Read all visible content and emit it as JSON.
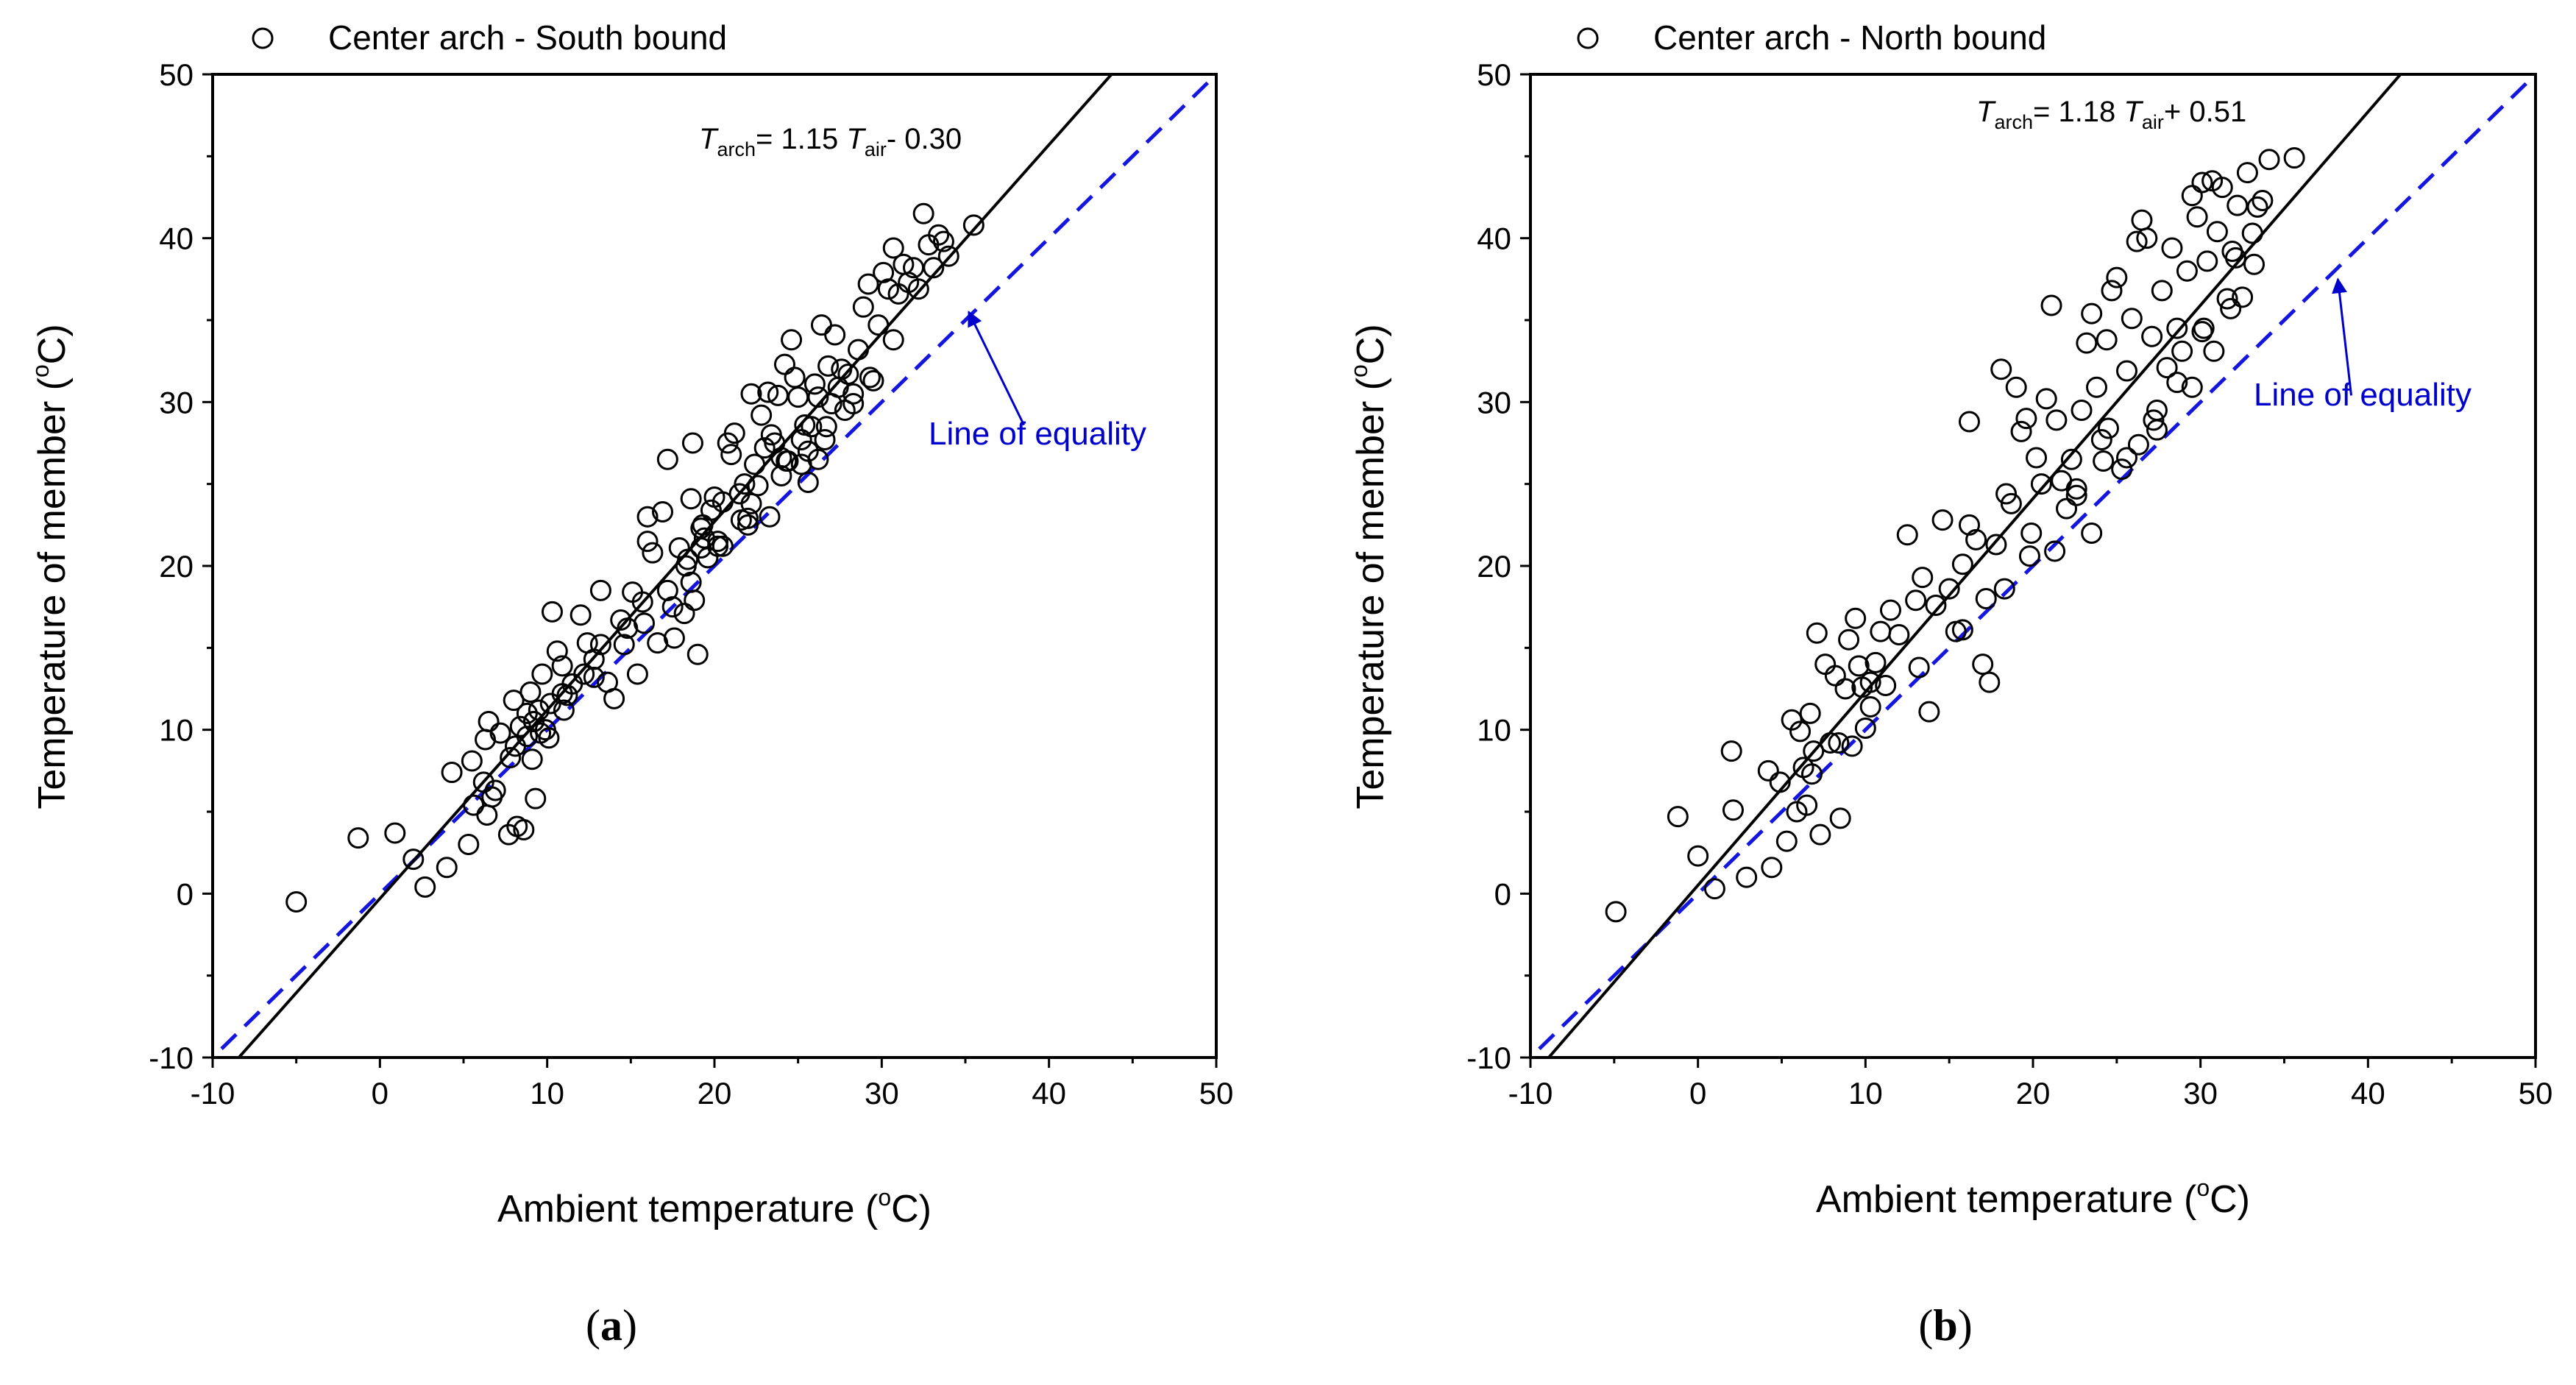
{
  "chart_data": [
    {
      "type": "scatter",
      "panel": "(a)",
      "panel_letter": "a",
      "legend": "Center arch - South bound",
      "xlabel": "Ambient temperature (",
      "ylabel": "Temperature of member (",
      "unit_sup": "o",
      "unit_tail": "C)",
      "xlim": [
        -10,
        50
      ],
      "ylim": [
        -10,
        50
      ],
      "xticks": [
        "-10",
        "0",
        "10",
        "20",
        "30",
        "40",
        "50"
      ],
      "yticks": [
        "-10",
        "0",
        "10",
        "20",
        "30",
        "40",
        "50"
      ],
      "grid": false,
      "fit": {
        "slope": 1.15,
        "intercept": -0.3,
        "color": "#000000"
      },
      "equality_line": {
        "slope": 1,
        "intercept": 0,
        "color": "#1515e0",
        "label": "Line of equality"
      },
      "equation": {
        "T1": "T",
        "sub1": "arch",
        "mid": "= 1.15 ",
        "T2": "T",
        "sub2": "air",
        "tail": "- 0.30"
      },
      "x": [
        -5,
        -1.3,
        0.9,
        2,
        2.7,
        4,
        4.3,
        5.3,
        5.5,
        6.3,
        6.4,
        6.5,
        6.7,
        6.9,
        7.2,
        7.7,
        8,
        8.2,
        8.4,
        8.6,
        8.8,
        9,
        9.1,
        9.2,
        9.3,
        9.5,
        9.7,
        9.9,
        10.1,
        10.3,
        10.6,
        10.9,
        11.2,
        11.5,
        12,
        12.4,
        12.8,
        13.2,
        13.6,
        14,
        14.4,
        14.8,
        15.1,
        15.4,
        15.7,
        16,
        16.3,
        16.6,
        16.9,
        17.2,
        17.6,
        17.9,
        18.2,
        18.4,
        18.6,
        18.8,
        19,
        19.2,
        19.4,
        19.6,
        19.8,
        20,
        20.2,
        20.5,
        20.8,
        21,
        21.2,
        21.5,
        21.8,
        22,
        22.2,
        22.4,
        22.6,
        22.8,
        23,
        23.2,
        23.4,
        23.6,
        23.8,
        24,
        24.2,
        24.4,
        24.6,
        24.8,
        25,
        25.2,
        25.4,
        25.6,
        25.8,
        26,
        26.2,
        26.4,
        26.6,
        26.8,
        27,
        27.2,
        27.4,
        27.6,
        27.8,
        28,
        28.3,
        28.6,
        28.9,
        29.2,
        29.5,
        29.8,
        30.1,
        30.4,
        30.7,
        31,
        31.3,
        31.6,
        31.9,
        32.2,
        32.5,
        32.8,
        33.1,
        33.4,
        33.7,
        34,
        35.5,
        17.2,
        18.7,
        19.2,
        23.3,
        16,
        18.3,
        19.3,
        20.5,
        24,
        22,
        25.2,
        26.2,
        8.1,
        8.8,
        9.2,
        13.2,
        6.2,
        10.2,
        10.9,
        12.2,
        17.5,
        14.6,
        21.6,
        24.3,
        26.7,
        29.3,
        30.7,
        28.3,
        25.6,
        22.2,
        20.2,
        18.6,
        15.8,
        12.8,
        11,
        9.6,
        7.8,
        5.6
      ],
      "y": [
        -0.5,
        3.4,
        3.7,
        2.1,
        0.4,
        1.6,
        7.4,
        3,
        8.1,
        9.4,
        4.8,
        10.5,
        5.9,
        6.3,
        9.8,
        3.6,
        11.8,
        4.1,
        10.2,
        3.9,
        9.6,
        12.3,
        8.2,
        10.5,
        5.8,
        11.2,
        13.4,
        10,
        9.5,
        17.2,
        14.8,
        13.9,
        12.1,
        12.8,
        17,
        15.3,
        14.3,
        18.5,
        12.9,
        11.9,
        16.7,
        16.2,
        18.4,
        13.4,
        17.8,
        23,
        20.8,
        15.3,
        23.3,
        18.5,
        15.6,
        21.1,
        17.1,
        20.4,
        24.1,
        17.9,
        14.6,
        22.3,
        21.7,
        20.5,
        23.4,
        24.2,
        21.2,
        23.9,
        27.5,
        26.8,
        28.1,
        24.4,
        25,
        22.9,
        30.5,
        26.2,
        24.9,
        29.2,
        27.2,
        30.6,
        28,
        27.5,
        30.4,
        26.6,
        32.3,
        26.4,
        33.8,
        31.5,
        30.3,
        27.7,
        28.6,
        25.1,
        28.5,
        31.1,
        30.3,
        34.7,
        27.7,
        32.2,
        29.9,
        34.1,
        30.9,
        32,
        29.5,
        31.7,
        29.9,
        33.2,
        35.8,
        37.2,
        31.3,
        34.7,
        37.9,
        36.9,
        39.4,
        36.6,
        38.4,
        37.3,
        38.2,
        36.9,
        41.5,
        39.6,
        38.2,
        40.2,
        39.8,
        38.9,
        40.8,
        26.5,
        27.5,
        21.1,
        23,
        21.5,
        20,
        22.5,
        21.2,
        25.5,
        22.5,
        26.2,
        26.5,
        9,
        11,
        10.5,
        15.2,
        6.8,
        11.6,
        12.2,
        13.4,
        17.5,
        15.2,
        22.8,
        26.4,
        28.5,
        31.5,
        33.8,
        30.5,
        27,
        23.8,
        21.5,
        19,
        16.5,
        13.2,
        11.2,
        9.8,
        8.3,
        5.4
      ],
      "annotation_arrow": {
        "from": [
          38.5,
          28.6
        ],
        "to": [
          35.2,
          35.5
        ]
      }
    },
    {
      "type": "scatter",
      "panel": "(b)",
      "panel_letter": "b",
      "legend": "Center arch - North bound",
      "xlabel": "Ambient temperature (",
      "ylabel": "Temperature of  member (",
      "unit_sup": "o",
      "unit_tail": "C)",
      "xlim": [
        -10,
        50
      ],
      "ylim": [
        -10,
        50
      ],
      "xticks": [
        "-10",
        "0",
        "10",
        "20",
        "30",
        "40",
        "50"
      ],
      "yticks": [
        "-10",
        "0",
        "10",
        "20",
        "30",
        "40",
        "50"
      ],
      "grid": false,
      "fit": {
        "slope": 1.18,
        "intercept": 0.51,
        "color": "#000000"
      },
      "equality_line": {
        "slope": 1,
        "intercept": 0,
        "color": "#1515e0",
        "label": "Line of equality"
      },
      "equation": {
        "T1": "T",
        "sub1": "arch",
        "mid": "= 1.18 ",
        "T2": "T",
        "sub2": "air",
        "tail": "+ 0.51"
      },
      "x": [
        -4.9,
        -1.2,
        0,
        1,
        2,
        2.1,
        2.9,
        4.2,
        4.4,
        4.9,
        5.3,
        5.6,
        5.9,
        6.1,
        6.3,
        6.5,
        6.7,
        6.9,
        7.1,
        7.3,
        7.6,
        7.9,
        8.2,
        8.5,
        8.8,
        9,
        9.2,
        9.4,
        9.6,
        9.8,
        10,
        10.3,
        10.6,
        10.9,
        11.2,
        11.5,
        12,
        12.5,
        13,
        13.4,
        13.8,
        14.2,
        14.6,
        15,
        15.4,
        15.8,
        16.2,
        16.6,
        17,
        17.4,
        17.8,
        18.1,
        18.4,
        18.7,
        19,
        19.3,
        19.6,
        19.9,
        20.2,
        20.5,
        20.8,
        21.1,
        21.4,
        21.7,
        22,
        22.3,
        22.6,
        22.9,
        23.2,
        23.5,
        23.8,
        24.1,
        24.4,
        24.7,
        25,
        25.3,
        25.6,
        25.9,
        26.2,
        26.5,
        26.8,
        27.1,
        27.4,
        27.7,
        28,
        28.3,
        28.6,
        28.9,
        29.2,
        29.5,
        29.8,
        30.1,
        30.4,
        30.7,
        31,
        31.3,
        31.6,
        31.9,
        32.2,
        32.5,
        32.8,
        33.1,
        33.4,
        33.7,
        34.1,
        35.6,
        15.8,
        16.2,
        18.3,
        21.3,
        23.5,
        24.2,
        26.3,
        27.4,
        29.5,
        30.2,
        32.1,
        30.8,
        24.5,
        25.6,
        27.2,
        28.6,
        30.1,
        31.8,
        33.2,
        22.6,
        19.8,
        17.2,
        13.2,
        10.3,
        8.4,
        6.8
      ],
      "y": [
        -1.1,
        4.7,
        2.3,
        0.3,
        8.7,
        5.1,
        1,
        7.5,
        1.6,
        6.8,
        3.2,
        10.6,
        5,
        9.9,
        7.7,
        5.4,
        11,
        8.7,
        15.9,
        3.6,
        14,
        9.2,
        13.3,
        4.6,
        12.5,
        15.5,
        9,
        16.8,
        13.9,
        12.6,
        10.1,
        12.9,
        14.1,
        16,
        12.7,
        17.3,
        15.8,
        21.9,
        17.9,
        19.3,
        11.1,
        17.6,
        22.8,
        18.6,
        16,
        20.1,
        28.8,
        21.6,
        14,
        12.9,
        21.3,
        32,
        24.4,
        23.8,
        30.9,
        28.2,
        29,
        22,
        26.6,
        25,
        30.2,
        35.9,
        28.9,
        25.2,
        23.5,
        26.5,
        24.7,
        29.5,
        33.6,
        35.4,
        30.9,
        27.7,
        33.8,
        36.8,
        37.6,
        25.9,
        31.9,
        35.1,
        39.8,
        41.1,
        40,
        34,
        28.3,
        36.8,
        32.1,
        39.4,
        34.5,
        33.1,
        38,
        42.6,
        41.3,
        43.4,
        38.6,
        43.5,
        40.4,
        43.1,
        36.3,
        39.2,
        42,
        36.4,
        44,
        40.3,
        41.9,
        42.3,
        44.8,
        44.9,
        16.1,
        22.5,
        18.6,
        20.9,
        22,
        26.4,
        27.4,
        29.5,
        30.9,
        34.5,
        38.8,
        33.1,
        28.4,
        26.6,
        28.9,
        31.2,
        34.3,
        35.7,
        38.4,
        24.3,
        20.6,
        18,
        13.8,
        11.4,
        9.2,
        7.3
      ],
      "annotation_arrow": {
        "from": [
          39,
          30.4
        ],
        "to": [
          38.2,
          37.5
        ]
      }
    }
  ]
}
